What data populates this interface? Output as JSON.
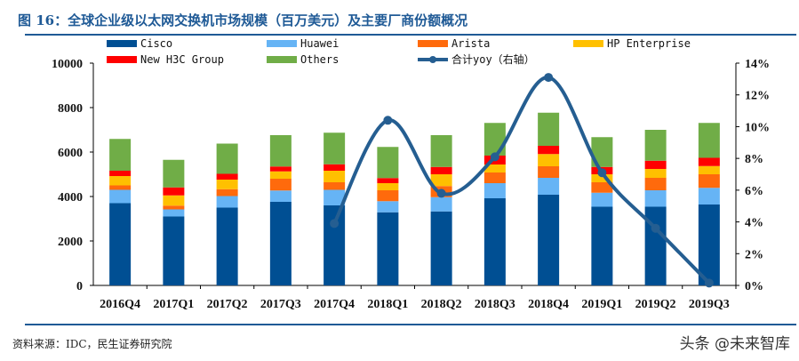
{
  "title": "图 16：全球企业级以太网交换机市场规模（百万美元）及主要厂商份额概况",
  "source": "资料来源：IDC，民生证券研究院",
  "watermark": "头条 @未来智库",
  "chart_data": {
    "type": "bar",
    "stacked": true,
    "categories": [
      "2016Q4",
      "2017Q1",
      "2017Q2",
      "2017Q3",
      "2017Q4",
      "2018Q1",
      "2018Q2",
      "2018Q3",
      "2018Q4",
      "2019Q1",
      "2019Q2",
      "2019Q3"
    ],
    "series": [
      {
        "name": "Cisco",
        "color": "#004f93",
        "values": [
          3700,
          3100,
          3500,
          3760,
          3600,
          3290,
          3330,
          3920,
          4080,
          3540,
          3540,
          3640
        ]
      },
      {
        "name": "Huawei",
        "color": "#66b4f5",
        "values": [
          600,
          320,
          520,
          510,
          700,
          500,
          640,
          680,
          760,
          630,
          740,
          750
        ]
      },
      {
        "name": "Arista",
        "color": "#ff6a0c",
        "values": [
          200,
          170,
          310,
          530,
          340,
          490,
          500,
          480,
          520,
          470,
          560,
          610
        ]
      },
      {
        "name": "HP Enterprise",
        "color": "#ffc000",
        "values": [
          420,
          460,
          430,
          330,
          520,
          320,
          530,
          360,
          550,
          360,
          400,
          370
        ]
      },
      {
        "name": "New H3C Group",
        "color": "#ff0000",
        "values": [
          240,
          360,
          260,
          220,
          290,
          230,
          330,
          400,
          370,
          330,
          370,
          370
        ]
      },
      {
        "name": "Others",
        "color": "#70ad47",
        "values": [
          1430,
          1240,
          1360,
          1410,
          1420,
          1400,
          1430,
          1470,
          1490,
          1340,
          1390,
          1570
        ]
      }
    ],
    "line": {
      "name": "合计yoy（右轴）",
      "color": "#255e91",
      "axis": "right",
      "values": [
        null,
        null,
        null,
        null,
        3.9,
        10.4,
        5.8,
        8.1,
        13.1,
        7.1,
        3.6,
        0.15
      ]
    },
    "ylim": [
      0,
      10000
    ],
    "yticks": [
      "0",
      "2000",
      "4000",
      "6000",
      "8000",
      "10000"
    ],
    "y2lim": [
      0,
      14
    ],
    "y2ticks": [
      "0%",
      "2%",
      "4%",
      "6%",
      "8%",
      "10%",
      "12%",
      "14%"
    ],
    "legend_placement": "top",
    "grid": false
  }
}
